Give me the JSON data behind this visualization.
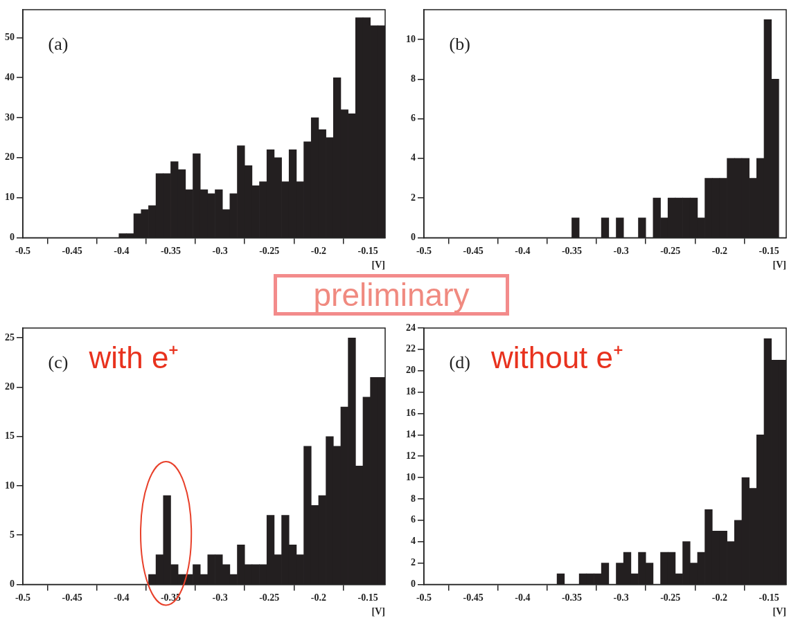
{
  "chart_data": [
    {
      "type": "histogram",
      "annotations": [
        "(a)",
        "preliminary"
      ],
      "xlabel": "[V]",
      "color": "#231f20",
      "bins": [
        -0.5,
        -0.4925,
        -0.485,
        -0.4775,
        -0.47,
        -0.4625,
        -0.455,
        -0.4475,
        -0.44,
        -0.4325,
        -0.425,
        -0.4175,
        -0.41,
        -0.4025,
        -0.395,
        -0.3875,
        -0.38,
        -0.3725,
        -0.365,
        -0.3575,
        -0.35,
        -0.3425,
        -0.335,
        -0.3275,
        -0.32,
        -0.3125,
        -0.305,
        -0.2975,
        -0.29,
        -0.2825,
        -0.275,
        -0.2675,
        -0.26,
        -0.2525,
        -0.245,
        -0.2375,
        -0.23,
        -0.2225,
        -0.215,
        -0.2075,
        -0.2,
        -0.1925,
        -0.185,
        -0.1775,
        -0.17,
        -0.1625,
        -0.155,
        -0.1475,
        -0.14,
        -0.1325
      ],
      "values": [
        0,
        0,
        0,
        0,
        0,
        0,
        0,
        0,
        0,
        0,
        0,
        0,
        0,
        1,
        1,
        6,
        7,
        8,
        16,
        16,
        19,
        17,
        12,
        21,
        12,
        11,
        12,
        7,
        11,
        23,
        18,
        13,
        14,
        22,
        20,
        14,
        22,
        14,
        24,
        30,
        27,
        25,
        40,
        32,
        31,
        55,
        55,
        53,
        53
      ],
      "xlim": [
        -0.5,
        -0.1325
      ],
      "xticks": [
        -0.5,
        -0.45,
        -0.4,
        -0.35,
        -0.3,
        -0.25,
        -0.2,
        -0.15
      ],
      "ylim": [
        0,
        57
      ],
      "yticks": [
        0,
        10,
        20,
        30,
        40,
        50
      ]
    },
    {
      "type": "histogram",
      "annotations": [
        "(b)"
      ],
      "xlabel": "[V]",
      "color": "#231f20",
      "bins": [
        -0.5,
        -0.4925,
        -0.485,
        -0.4775,
        -0.47,
        -0.4625,
        -0.455,
        -0.4475,
        -0.44,
        -0.4325,
        -0.425,
        -0.4175,
        -0.41,
        -0.4025,
        -0.395,
        -0.3875,
        -0.38,
        -0.3725,
        -0.365,
        -0.3575,
        -0.35,
        -0.3425,
        -0.335,
        -0.3275,
        -0.32,
        -0.3125,
        -0.305,
        -0.2975,
        -0.29,
        -0.2825,
        -0.275,
        -0.2675,
        -0.26,
        -0.2525,
        -0.245,
        -0.2375,
        -0.23,
        -0.2225,
        -0.215,
        -0.2075,
        -0.2,
        -0.1925,
        -0.185,
        -0.1775,
        -0.17,
        -0.1625,
        -0.155,
        -0.1475,
        -0.14,
        -0.1325
      ],
      "values": [
        0,
        0,
        0,
        0,
        0,
        0,
        0,
        0,
        0,
        0,
        0,
        0,
        0,
        0,
        0,
        0,
        0,
        0,
        0,
        0,
        1,
        0,
        0,
        0,
        1,
        0,
        1,
        0,
        0,
        1,
        0,
        2,
        1,
        2,
        2,
        2,
        2,
        1,
        3,
        3,
        3,
        4,
        4,
        4,
        3,
        4,
        11,
        8,
        null
      ],
      "xlim": [
        -0.5,
        -0.1325
      ],
      "xticks": [
        -0.5,
        -0.45,
        -0.4,
        -0.35,
        -0.3,
        -0.25,
        -0.2,
        -0.15
      ],
      "ylim": [
        0,
        11.5
      ],
      "yticks": [
        0,
        2,
        4,
        6,
        8,
        10
      ]
    },
    {
      "type": "histogram",
      "annotations": [
        "(c)",
        "with e⁺"
      ],
      "xlabel": "[V]",
      "color": "#231f20",
      "bins": [
        -0.5,
        -0.4925,
        -0.485,
        -0.4775,
        -0.47,
        -0.4625,
        -0.455,
        -0.4475,
        -0.44,
        -0.4325,
        -0.425,
        -0.4175,
        -0.41,
        -0.4025,
        -0.395,
        -0.3875,
        -0.38,
        -0.3725,
        -0.365,
        -0.3575,
        -0.35,
        -0.3425,
        -0.335,
        -0.3275,
        -0.32,
        -0.3125,
        -0.305,
        -0.2975,
        -0.29,
        -0.2825,
        -0.275,
        -0.2675,
        -0.26,
        -0.2525,
        -0.245,
        -0.2375,
        -0.23,
        -0.2225,
        -0.215,
        -0.2075,
        -0.2,
        -0.1925,
        -0.185,
        -0.1775,
        -0.17,
        -0.1625,
        -0.155,
        -0.1475,
        -0.14,
        -0.1325
      ],
      "values": [
        0,
        0,
        0,
        0,
        0,
        0,
        0,
        0,
        0,
        0,
        0,
        0,
        0,
        0,
        0,
        0,
        0,
        1,
        3,
        9,
        2,
        1,
        1,
        2,
        1,
        3,
        3,
        2,
        1,
        4,
        2,
        2,
        2,
        7,
        3,
        7,
        4,
        3,
        14,
        8,
        9,
        15,
        14,
        18,
        25,
        12,
        19,
        21,
        21
      ],
      "xlim": [
        -0.5,
        -0.1325
      ],
      "xticks": [
        -0.5,
        -0.45,
        -0.4,
        -0.35,
        -0.3,
        -0.25,
        -0.2,
        -0.15
      ],
      "ylim": [
        0,
        26
      ],
      "yticks": [
        0,
        5,
        10,
        15,
        20,
        25
      ]
    },
    {
      "type": "histogram",
      "annotations": [
        "(d)",
        "without e⁺"
      ],
      "xlabel": "[V]",
      "color": "#231f20",
      "bins": [
        -0.5,
        -0.4925,
        -0.485,
        -0.4775,
        -0.47,
        -0.4625,
        -0.455,
        -0.4475,
        -0.44,
        -0.4325,
        -0.425,
        -0.4175,
        -0.41,
        -0.4025,
        -0.395,
        -0.3875,
        -0.38,
        -0.3725,
        -0.365,
        -0.3575,
        -0.35,
        -0.3425,
        -0.335,
        -0.3275,
        -0.32,
        -0.3125,
        -0.305,
        -0.2975,
        -0.29,
        -0.2825,
        -0.275,
        -0.2675,
        -0.26,
        -0.2525,
        -0.245,
        -0.2375,
        -0.23,
        -0.2225,
        -0.215,
        -0.2075,
        -0.2,
        -0.1925,
        -0.185,
        -0.1775,
        -0.17,
        -0.1625,
        -0.155,
        -0.1475,
        -0.14,
        -0.1325
      ],
      "values": [
        0,
        0,
        0,
        0,
        0,
        0,
        0,
        0,
        0,
        0,
        0,
        0,
        0,
        0,
        0,
        0,
        0,
        0,
        1,
        0,
        0,
        1,
        1,
        1,
        2,
        0,
        2,
        3,
        1,
        3,
        2,
        0,
        3,
        3,
        1,
        4,
        2,
        3,
        7,
        5,
        5,
        4,
        6,
        10,
        9,
        14,
        23,
        21,
        21
      ],
      "xlim": [
        -0.5,
        -0.1325
      ],
      "xticks": [
        -0.5,
        -0.45,
        -0.4,
        -0.35,
        -0.3,
        -0.25,
        -0.2,
        -0.15
      ],
      "ylim": [
        0,
        24
      ],
      "yticks": [
        0,
        2,
        4,
        6,
        8,
        10,
        12,
        14,
        16,
        18,
        20,
        22,
        24
      ]
    }
  ]
}
